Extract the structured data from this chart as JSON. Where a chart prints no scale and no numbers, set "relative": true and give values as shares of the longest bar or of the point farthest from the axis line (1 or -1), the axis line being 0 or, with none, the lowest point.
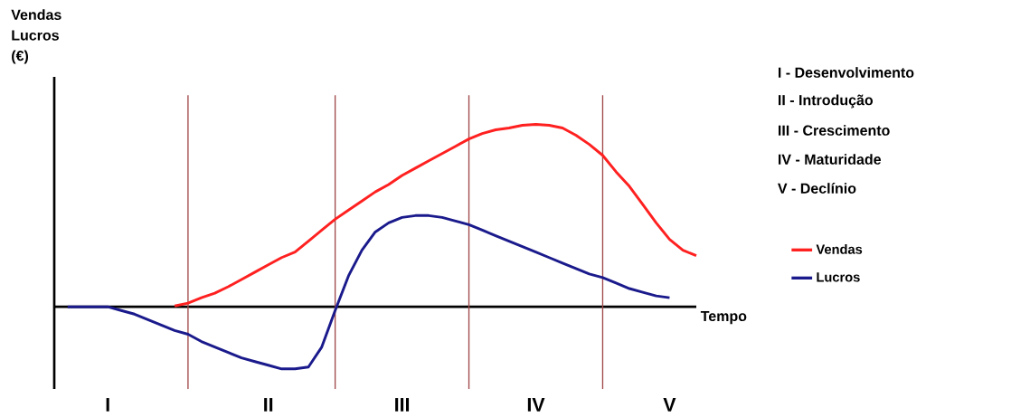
{
  "chart_data": {
    "type": "line",
    "relative": true,
    "xlabel": "Tempo",
    "ylabel": "Vendas Lucros (€)",
    "categories": [
      null,
      null,
      null,
      null,
      "I",
      null,
      null,
      null,
      null,
      null,
      null,
      null,
      null,
      null,
      null,
      null,
      "II",
      null,
      null,
      null,
      null,
      null,
      null,
      null,
      null,
      null,
      "III",
      null,
      null,
      null,
      null,
      null,
      null,
      null,
      null,
      null,
      "IV",
      null,
      null,
      null,
      null,
      null,
      null,
      null,
      null,
      null,
      "V",
      null,
      null
    ],
    "annotations": [
      "I - Desenvolvimento",
      "II - Introdução",
      "III - Crescimento",
      "IV - Maturidade",
      "V - Declínio"
    ],
    "legend": "right",
    "marker": "none",
    "line_style": "solid",
    "grid": "x",
    "series": [
      {
        "name": "Vendas",
        "color": "#ff2020",
        "values": [
          null,
          null,
          null,
          null,
          null,
          null,
          null,
          null,
          null,
          0.005,
          0.02,
          0.05,
          0.075,
          0.11,
          0.15,
          0.19,
          0.23,
          0.27,
          0.3,
          0.36,
          0.42,
          0.48,
          0.53,
          0.58,
          0.63,
          0.67,
          0.72,
          0.76,
          0.8,
          0.84,
          0.88,
          0.92,
          0.95,
          0.97,
          0.98,
          0.995,
          1.0,
          0.995,
          0.98,
          0.94,
          0.89,
          0.83,
          0.74,
          0.66,
          0.56,
          0.46,
          0.37,
          0.31,
          0.28
        ]
      },
      {
        "name": "Lucros",
        "color": "#1a1a8c",
        "values": [
          null,
          0,
          0,
          0,
          0,
          -0.02,
          -0.04,
          -0.07,
          -0.1,
          -0.13,
          -0.15,
          -0.19,
          -0.22,
          -0.25,
          -0.28,
          -0.3,
          -0.32,
          -0.34,
          -0.34,
          -0.33,
          -0.22,
          -0.02,
          0.17,
          0.31,
          0.41,
          0.46,
          0.49,
          0.5,
          0.5,
          0.49,
          0.47,
          0.45,
          0.42,
          0.39,
          0.36,
          0.33,
          0.3,
          0.27,
          0.24,
          0.21,
          0.18,
          0.16,
          0.13,
          0.1,
          0.08,
          0.06,
          0.05,
          null,
          null
        ]
      }
    ]
  }
}
